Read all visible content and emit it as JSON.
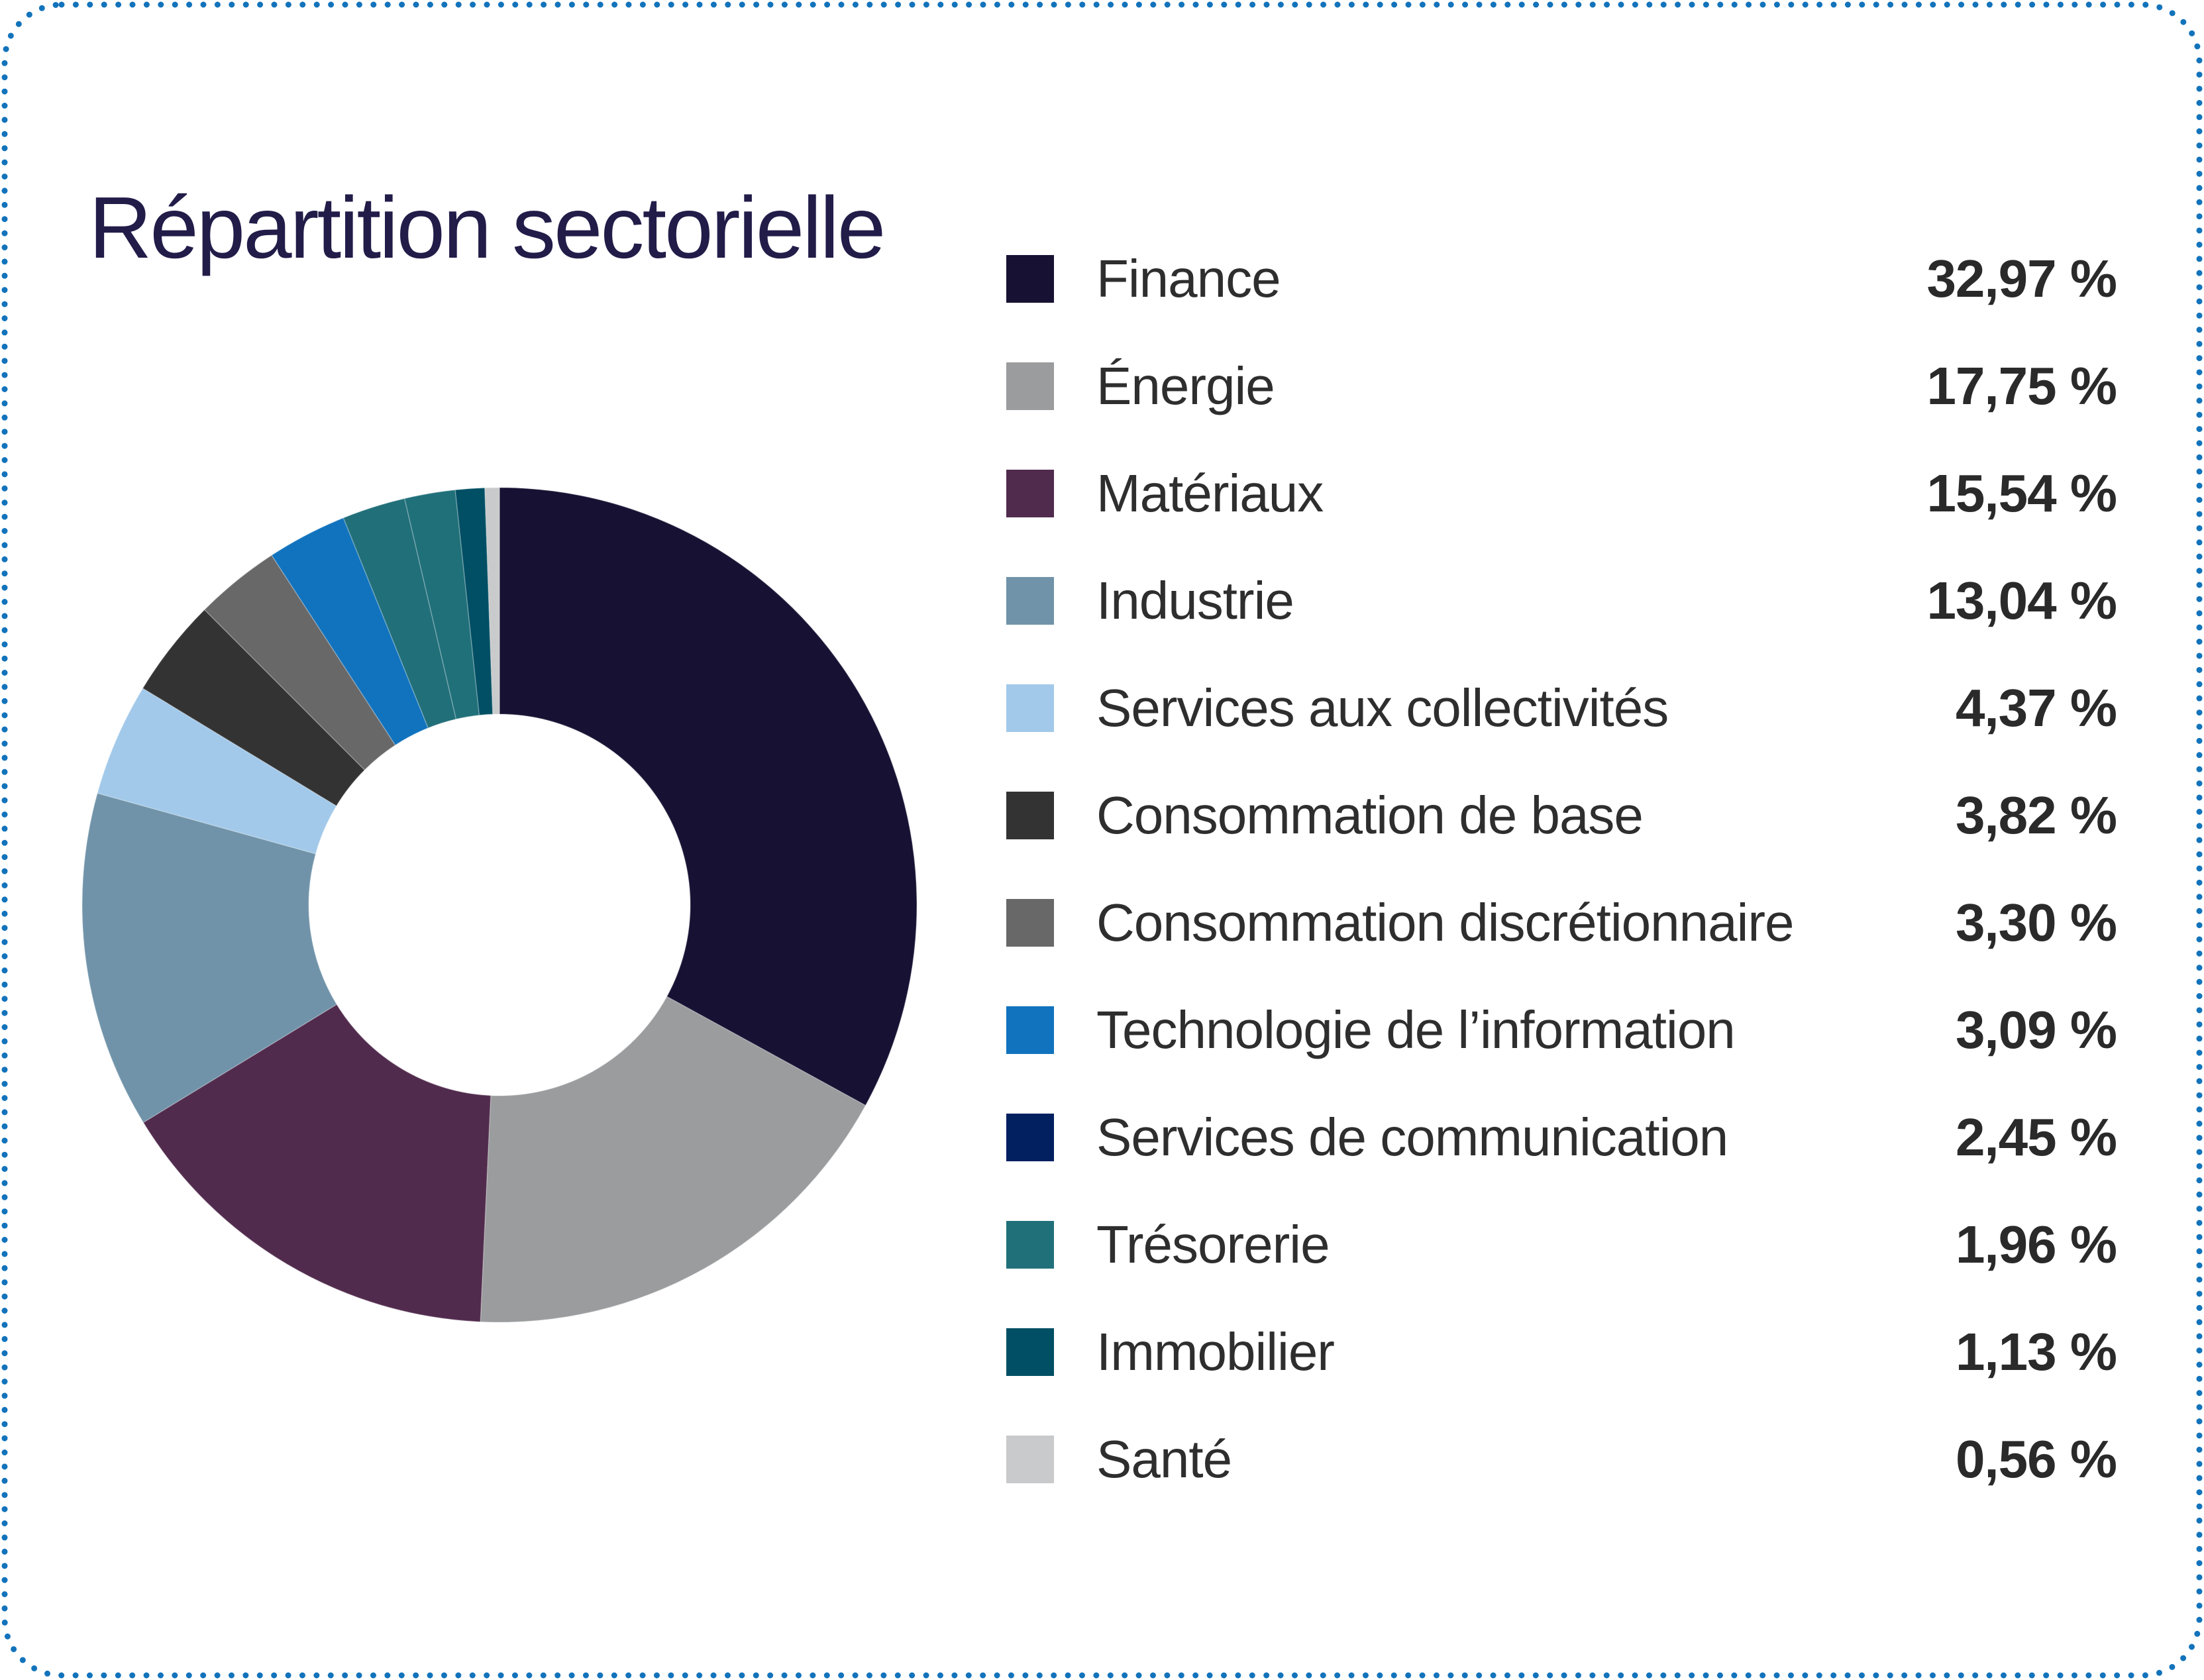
{
  "page": {
    "title": "Répartition sectorielle",
    "title_color": "#221c49",
    "border_color": "#1273BB",
    "background_color": "#ffffff"
  },
  "chart_data": {
    "type": "pie",
    "subtype": "donut",
    "title": "Répartition sectorielle",
    "start_angle_deg": 0,
    "direction": "clockwise",
    "legend_position": "right",
    "inner_radius_ratio": 0.457,
    "series": [
      {
        "label": "Finance",
        "value_pct": 32.97,
        "value_label": "32,97 %",
        "color": "#171233"
      },
      {
        "label": "Énergie",
        "value_pct": 17.75,
        "value_label": "17,75 %",
        "color": "#9A9C9E"
      },
      {
        "label": "Matériaux",
        "value_pct": 15.54,
        "value_label": "15,54 %",
        "color": "#512B4D"
      },
      {
        "label": "Industrie",
        "value_pct": 13.04,
        "value_label": "13,04 %",
        "color": "#7093A9"
      },
      {
        "label": "Services aux collectivités",
        "value_pct": 4.37,
        "value_label": "4,37 %",
        "color": "#A2C9EA"
      },
      {
        "label": "Consommation de base",
        "value_pct": 3.82,
        "value_label": "3,82 %",
        "color": "#333333"
      },
      {
        "label": "Consommation discrétionnaire",
        "value_pct": 3.3,
        "value_label": "3,30 %",
        "color": "#686868"
      },
      {
        "label": "Technologie de l’information",
        "value_pct": 3.09,
        "value_label": "3,09 %",
        "color": "#1173BE"
      },
      {
        "label": "Services de communication",
        "value_pct": 2.45,
        "value_label": "2,45 %",
        "color": "#022060",
        "slice_color": "#216F79"
      },
      {
        "label": "Trésorerie",
        "value_pct": 1.96,
        "value_label": "1,96 %",
        "color": "#20707A"
      },
      {
        "label": "Immobilier",
        "value_pct": 1.13,
        "value_label": "1,13 %",
        "color": "#014F64"
      },
      {
        "label": "Santé",
        "value_pct": 0.56,
        "value_label": "0,56 %",
        "color": "#C9CACB"
      }
    ]
  }
}
